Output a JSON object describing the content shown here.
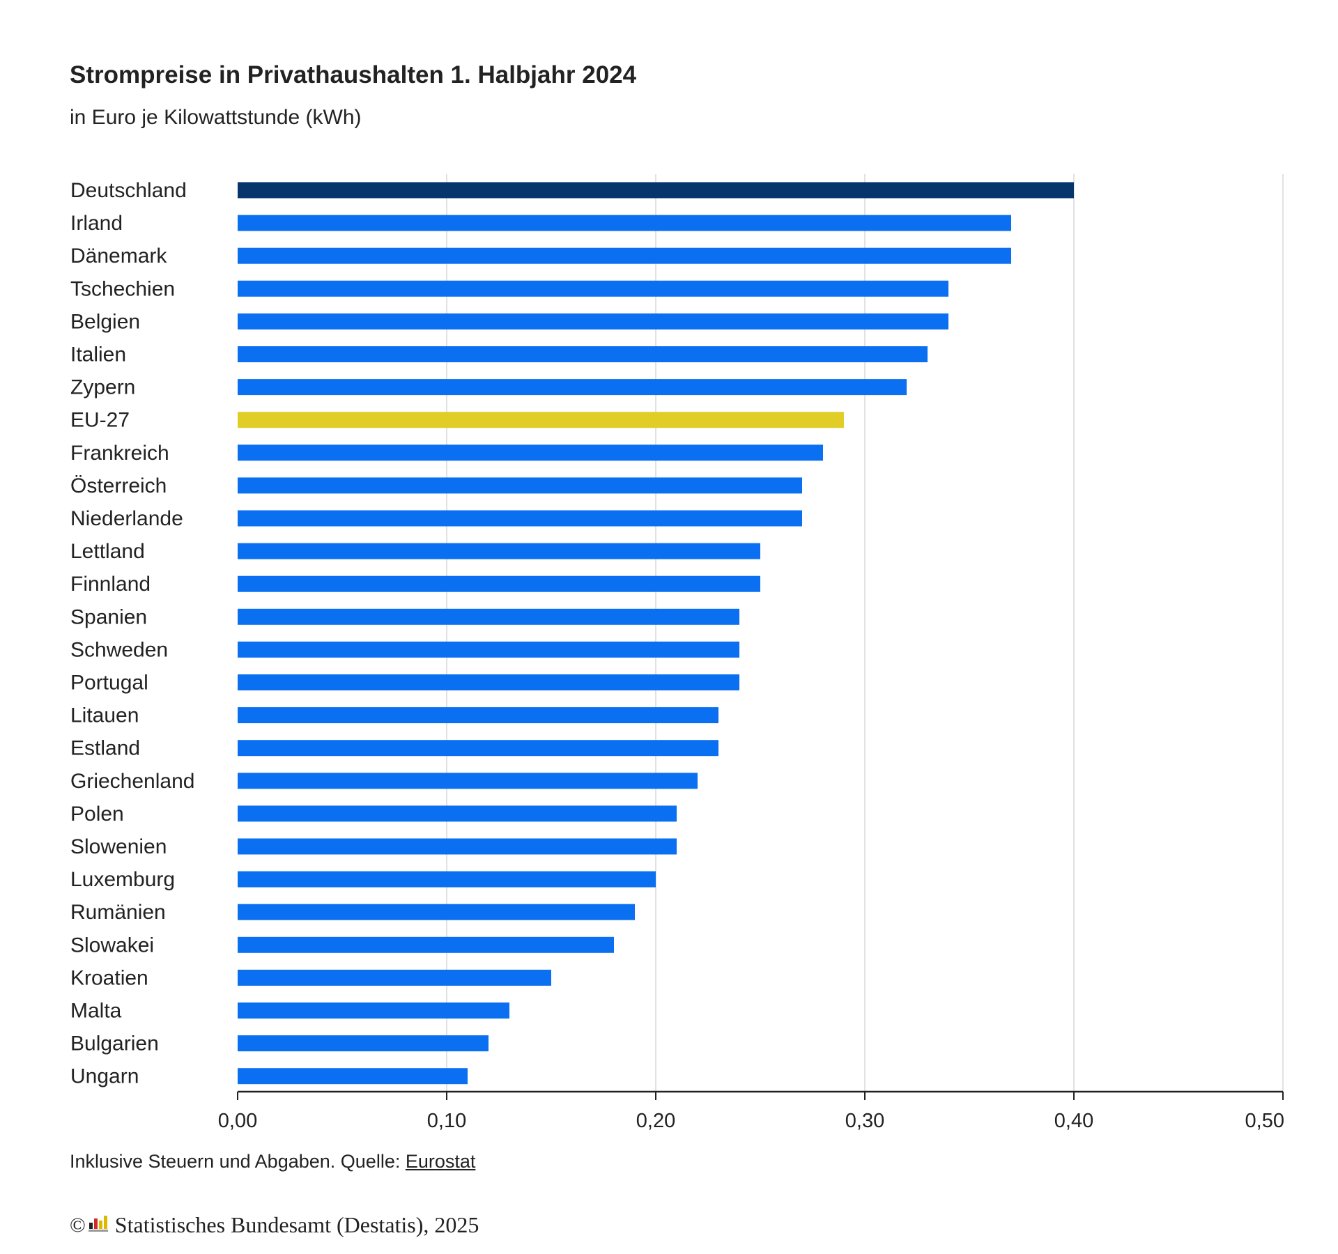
{
  "header": {
    "title": "Strompreise in Privathaushalten 1. Halbjahr 2024",
    "subtitle": "in Euro je Kilowattstunde (kWh)"
  },
  "footer": {
    "note_prefix": "Inklusive Steuern und Abgaben. Quelle: ",
    "source_link": "Eurostat",
    "copyright_symbol": "©",
    "credit": "Statistisches Bundesamt (Destatis), 2025",
    "logo_icon": "destatis-logo-icon"
  },
  "colors": {
    "default_bar": "#0a6ff0",
    "highlight_bar": "#05356b",
    "eu_bar": "#e0cd26",
    "grid": "#d8d8d8",
    "axis": "#222222",
    "text": "#222222"
  },
  "chart_data": {
    "type": "bar",
    "orientation": "horizontal",
    "title": "Strompreise in Privathaushalten 1. Halbjahr 2024",
    "subtitle": "in Euro je Kilowattstunde (kWh)",
    "xlabel": "",
    "ylabel": "",
    "xlim": [
      0,
      0.5
    ],
    "ticks": [
      0,
      0.1,
      0.2,
      0.3,
      0.4,
      0.5
    ],
    "tick_labels": [
      "0,00",
      "0,10",
      "0,20",
      "0,30",
      "0,40",
      "0,50"
    ],
    "grid": true,
    "legend": "none",
    "categories": [
      "Deutschland",
      "Irland",
      "Dänemark",
      "Tschechien",
      "Belgien",
      "Italien",
      "Zypern",
      "EU-27",
      "Frankreich",
      "Österreich",
      "Niederlande",
      "Lettland",
      "Finnland",
      "Spanien",
      "Schweden",
      "Portugal",
      "Litauen",
      "Estland",
      "Griechenland",
      "Polen",
      "Slowenien",
      "Luxemburg",
      "Rumänien",
      "Slowakei",
      "Kroatien",
      "Malta",
      "Bulgarien",
      "Ungarn"
    ],
    "values": [
      0.4,
      0.37,
      0.37,
      0.34,
      0.34,
      0.33,
      0.32,
      0.29,
      0.28,
      0.27,
      0.27,
      0.25,
      0.25,
      0.24,
      0.24,
      0.24,
      0.23,
      0.23,
      0.22,
      0.21,
      0.21,
      0.2,
      0.19,
      0.18,
      0.15,
      0.13,
      0.12,
      0.11
    ],
    "highlight": {
      "Deutschland": "highlight_bar",
      "EU-27": "eu_bar"
    }
  }
}
